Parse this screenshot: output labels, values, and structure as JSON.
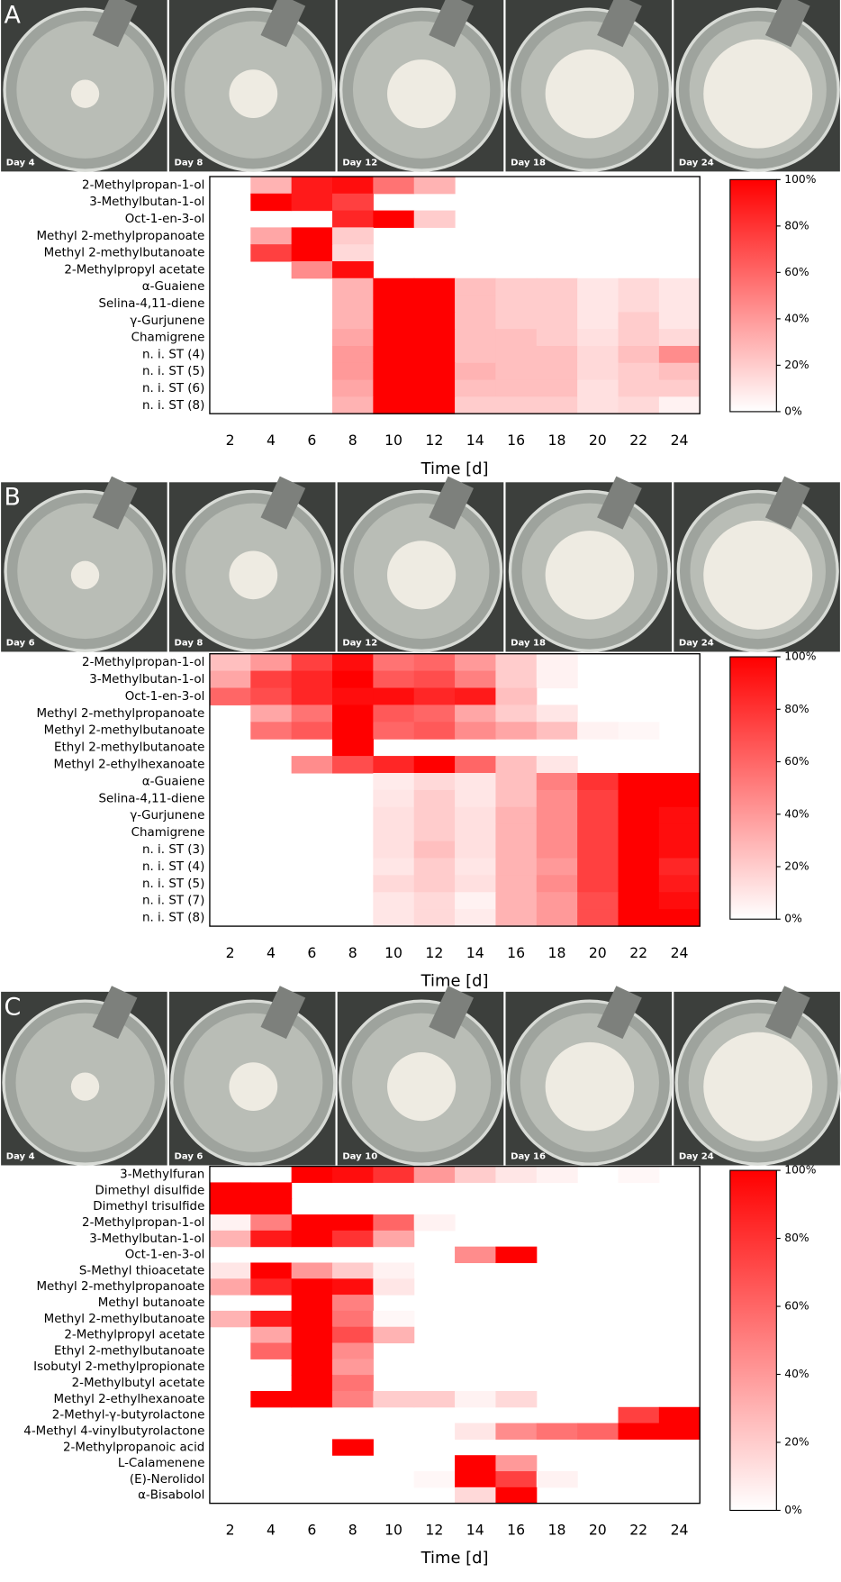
{
  "chart_data": [
    {
      "type": "heatmap",
      "panel": "A",
      "photos": [
        "Day 4",
        "Day 8",
        "Day 12",
        "Day 18",
        "Day 24"
      ],
      "rows": [
        "2-Methylpropan-1-ol",
        "3-Methylbutan-1-ol",
        "Oct-1-en-3-ol",
        "Methyl 2-methylpropanoate",
        "Methyl 2-methylbutanoate",
        "2-Methylpropyl acetate",
        "α-Guaiene",
        "Selina-4,11-diene",
        "γ-Gurjunene",
        "Chamigrene",
        "n. i. ST (4)",
        "n. i. ST (5)",
        "n. i. ST (6)",
        "n. i. ST (8)"
      ],
      "x": [
        2,
        4,
        6,
        8,
        10,
        12,
        14,
        16,
        18,
        20,
        22,
        24
      ],
      "x_label": "Time [d]",
      "values": [
        [
          null,
          30,
          90,
          95,
          55,
          30,
          null,
          null,
          null,
          null,
          null,
          null
        ],
        [
          null,
          100,
          90,
          75,
          null,
          null,
          null,
          null,
          null,
          null,
          null,
          null
        ],
        [
          null,
          null,
          null,
          85,
          100,
          20,
          null,
          null,
          null,
          null,
          null,
          null
        ],
        [
          null,
          35,
          100,
          20,
          null,
          null,
          null,
          null,
          null,
          null,
          null,
          null
        ],
        [
          null,
          75,
          100,
          15,
          null,
          null,
          null,
          null,
          null,
          null,
          null,
          null
        ],
        [
          null,
          null,
          45,
          95,
          null,
          null,
          null,
          null,
          null,
          null,
          null,
          null
        ],
        [
          null,
          null,
          null,
          30,
          100,
          100,
          25,
          20,
          20,
          10,
          15,
          10
        ],
        [
          null,
          null,
          null,
          30,
          100,
          100,
          25,
          20,
          20,
          10,
          15,
          10
        ],
        [
          null,
          null,
          null,
          30,
          100,
          100,
          25,
          20,
          20,
          10,
          20,
          10
        ],
        [
          null,
          null,
          null,
          35,
          100,
          100,
          25,
          25,
          20,
          12,
          20,
          15
        ],
        [
          null,
          null,
          null,
          40,
          100,
          100,
          25,
          25,
          25,
          15,
          25,
          45
        ],
        [
          null,
          null,
          null,
          40,
          100,
          100,
          30,
          25,
          25,
          15,
          20,
          25
        ],
        [
          null,
          null,
          null,
          35,
          100,
          100,
          25,
          25,
          25,
          12,
          20,
          20
        ],
        [
          null,
          null,
          null,
          30,
          100,
          100,
          20,
          20,
          20,
          12,
          15,
          5
        ]
      ],
      "cmap": [
        "#ffffff",
        "#ff0000"
      ],
      "zlim": [
        0,
        100
      ],
      "zticks": [
        {
          "value": 0,
          "label": "0%"
        },
        {
          "value": 20,
          "label": "20%"
        },
        {
          "value": 40,
          "label": "40%"
        },
        {
          "value": 60,
          "label": "60%"
        },
        {
          "value": 80,
          "label": "80%"
        },
        {
          "value": 100,
          "label": "100%"
        }
      ]
    },
    {
      "type": "heatmap",
      "panel": "B",
      "photos": [
        "Day 6",
        "Day 8",
        "Day 12",
        "Day 18",
        "Day 24"
      ],
      "rows": [
        "2-Methylpropan-1-ol",
        "3-Methylbutan-1-ol",
        "Oct-1-en-3-ol",
        "Methyl 2-methylpropanoate",
        "Methyl 2-methylbutanoate",
        "Ethyl 2-methylbutanoate",
        "Methyl 2-ethylhexanoate",
        "α-Guaiene",
        "Selina-4,11-diene",
        "γ-Gurjunene",
        "Chamigrene",
        "n. i. ST (3)",
        "n. i. ST (4)",
        "n. i. ST (5)",
        "n. i. ST (7)",
        "n. i. ST (8)"
      ],
      "x": [
        2,
        4,
        6,
        8,
        10,
        12,
        14,
        16,
        18,
        20,
        22,
        24
      ],
      "x_label": "Time [d]",
      "values": [
        [
          25,
          40,
          75,
          95,
          55,
          60,
          40,
          20,
          5,
          null,
          null,
          null
        ],
        [
          35,
          75,
          85,
          100,
          65,
          70,
          50,
          20,
          5,
          null,
          null,
          null
        ],
        [
          60,
          70,
          85,
          95,
          95,
          85,
          90,
          25,
          null,
          null,
          null,
          null
        ],
        [
          null,
          35,
          55,
          100,
          65,
          60,
          35,
          20,
          10,
          null,
          null,
          null
        ],
        [
          null,
          55,
          65,
          100,
          60,
          65,
          45,
          35,
          25,
          5,
          3,
          null
        ],
        [
          null,
          null,
          null,
          100,
          null,
          null,
          null,
          null,
          null,
          null,
          null,
          null
        ],
        [
          null,
          null,
          45,
          70,
          85,
          100,
          60,
          25,
          10,
          null,
          null,
          null
        ],
        [
          null,
          null,
          null,
          null,
          8,
          15,
          10,
          25,
          50,
          80,
          100,
          100
        ],
        [
          null,
          null,
          null,
          null,
          10,
          20,
          10,
          25,
          45,
          75,
          100,
          100
        ],
        [
          null,
          null,
          null,
          null,
          12,
          20,
          12,
          30,
          45,
          75,
          100,
          95
        ],
        [
          null,
          null,
          null,
          null,
          12,
          20,
          12,
          30,
          45,
          75,
          100,
          95
        ],
        [
          null,
          null,
          null,
          null,
          12,
          25,
          12,
          30,
          45,
          75,
          100,
          95
        ],
        [
          null,
          null,
          null,
          null,
          10,
          20,
          10,
          30,
          40,
          75,
          100,
          85
        ],
        [
          null,
          null,
          null,
          null,
          15,
          20,
          12,
          30,
          45,
          75,
          100,
          90
        ],
        [
          null,
          null,
          null,
          null,
          10,
          15,
          5,
          30,
          40,
          70,
          100,
          95
        ],
        [
          null,
          null,
          null,
          null,
          10,
          15,
          8,
          30,
          40,
          70,
          100,
          100
        ]
      ],
      "cmap": [
        "#ffffff",
        "#ff0000"
      ],
      "zlim": [
        0,
        100
      ],
      "zticks": [
        {
          "value": 0,
          "label": "0%"
        },
        {
          "value": 20,
          "label": "20%"
        },
        {
          "value": 40,
          "label": "40%"
        },
        {
          "value": 60,
          "label": "60%"
        },
        {
          "value": 80,
          "label": "80%"
        },
        {
          "value": 100,
          "label": "100%"
        }
      ]
    },
    {
      "type": "heatmap",
      "panel": "C",
      "photos": [
        "Day 4",
        "Day 6",
        "Day 10",
        "Day 16",
        "Day 24"
      ],
      "rows": [
        "3-Methylfuran",
        "Dimethyl disulfide",
        "Dimethyl trisulfide",
        "2-Methylpropan-1-ol",
        "3-Methylbutan-1-ol",
        "Oct-1-en-3-ol",
        "S-Methyl thioacetate",
        "Methyl 2-methylpropanoate",
        "Methyl butanoate",
        "Methyl 2-methylbutanoate",
        "2-Methylpropyl acetate",
        "Ethyl 2-methylbutanoate",
        "Isobutyl 2-methylpropionate",
        "2-Methylbutyl acetate",
        "Methyl 2-ethylhexanoate",
        "2-Methyl-γ-butyrolactone",
        "4-Methyl 4-vinylbutyrolactone",
        "2-Methylpropanoic acid",
        "L-Calamenene",
        "(E)-Nerolidol",
        "α-Bisabolol"
      ],
      "x": [
        2,
        4,
        6,
        8,
        10,
        12,
        14,
        16,
        18,
        20,
        22,
        24
      ],
      "x_label": "Time [d]",
      "values": [
        [
          null,
          null,
          100,
          95,
          80,
          40,
          20,
          10,
          5,
          null,
          3,
          null
        ],
        [
          100,
          100,
          null,
          null,
          null,
          null,
          null,
          null,
          null,
          null,
          null,
          null
        ],
        [
          100,
          100,
          null,
          null,
          null,
          null,
          null,
          null,
          null,
          null,
          null,
          null
        ],
        [
          5,
          50,
          100,
          100,
          60,
          5,
          null,
          null,
          null,
          null,
          null,
          null
        ],
        [
          30,
          90,
          100,
          80,
          35,
          null,
          null,
          null,
          null,
          null,
          null,
          null
        ],
        [
          null,
          null,
          null,
          null,
          null,
          null,
          45,
          100,
          null,
          null,
          null,
          null
        ],
        [
          10,
          100,
          40,
          20,
          5,
          null,
          null,
          null,
          null,
          null,
          null,
          null
        ],
        [
          35,
          85,
          100,
          95,
          10,
          null,
          null,
          null,
          null,
          null,
          null,
          null
        ],
        [
          null,
          null,
          100,
          50,
          null,
          null,
          null,
          null,
          null,
          null,
          null,
          null
        ],
        [
          30,
          90,
          100,
          55,
          3,
          null,
          null,
          null,
          null,
          null,
          null,
          null
        ],
        [
          null,
          35,
          100,
          70,
          30,
          null,
          null,
          null,
          null,
          null,
          null,
          null
        ],
        [
          null,
          60,
          100,
          45,
          null,
          null,
          null,
          null,
          null,
          null,
          null,
          null
        ],
        [
          null,
          null,
          100,
          40,
          null,
          null,
          null,
          null,
          null,
          null,
          null,
          null
        ],
        [
          null,
          null,
          100,
          55,
          null,
          null,
          null,
          null,
          null,
          null,
          null,
          null
        ],
        [
          null,
          100,
          100,
          50,
          20,
          20,
          5,
          15,
          null,
          null,
          null,
          null
        ],
        [
          null,
          null,
          null,
          null,
          null,
          null,
          null,
          null,
          null,
          null,
          75,
          100
        ],
        [
          null,
          null,
          null,
          null,
          null,
          null,
          10,
          45,
          55,
          60,
          100,
          100
        ],
        [
          null,
          null,
          null,
          100,
          null,
          null,
          null,
          null,
          null,
          null,
          null,
          null
        ],
        [
          null,
          null,
          null,
          null,
          null,
          null,
          100,
          40,
          null,
          null,
          null,
          null
        ],
        [
          null,
          null,
          null,
          null,
          null,
          3,
          100,
          75,
          5,
          null,
          null,
          null
        ],
        [
          null,
          null,
          null,
          null,
          null,
          null,
          15,
          100,
          null,
          null,
          null,
          null
        ]
      ],
      "cmap": [
        "#ffffff",
        "#ff0000"
      ],
      "zlim": [
        0,
        100
      ],
      "zticks": [
        {
          "value": 0,
          "label": "0%"
        },
        {
          "value": 20,
          "label": "20%"
        },
        {
          "value": 40,
          "label": "40%"
        },
        {
          "value": 60,
          "label": "60%"
        },
        {
          "value": 80,
          "label": "80%"
        },
        {
          "value": 100,
          "label": "100%"
        }
      ]
    }
  ]
}
